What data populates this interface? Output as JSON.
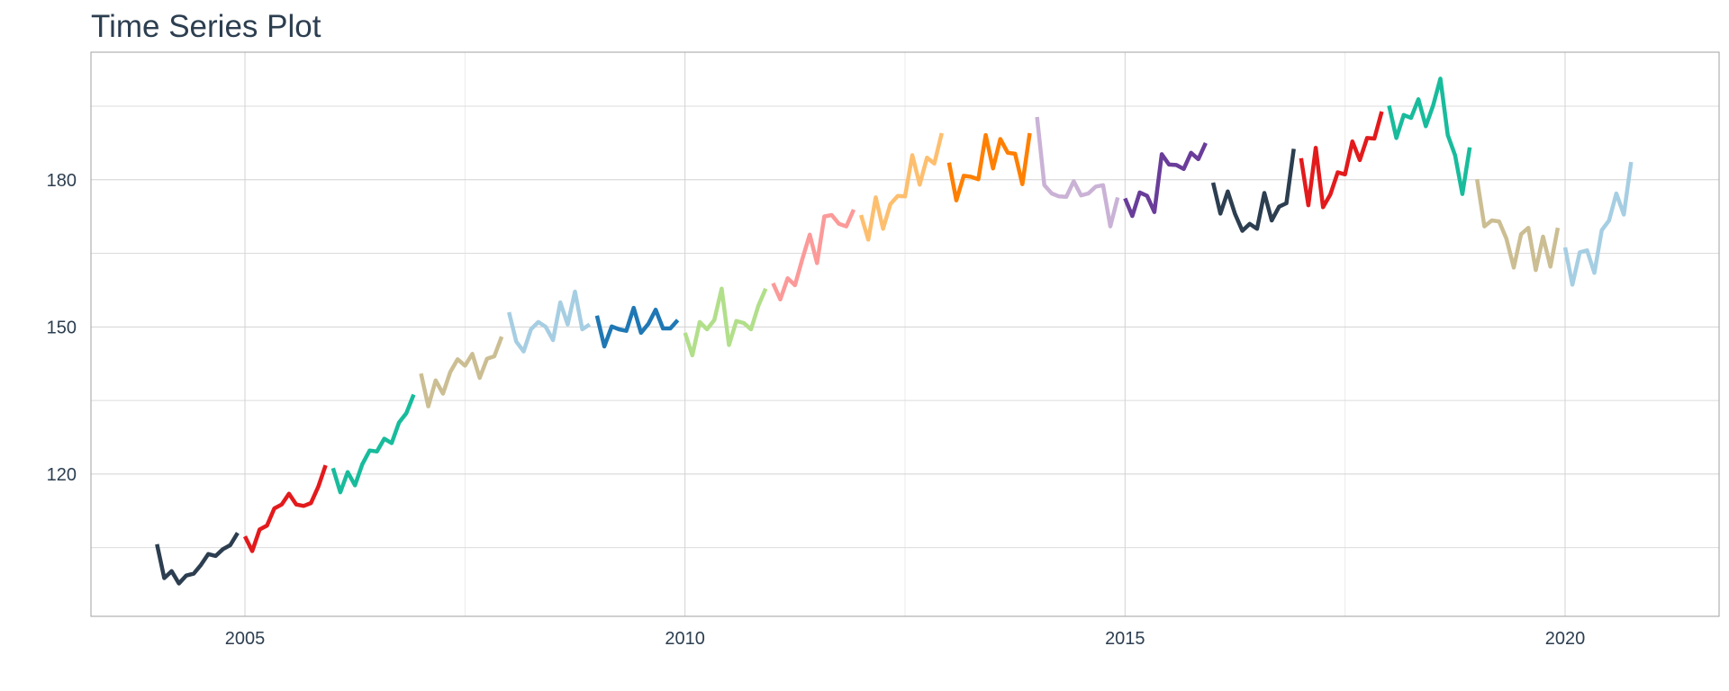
{
  "chart_data": {
    "type": "line",
    "title": "Time Series Plot",
    "xlabel": "",
    "ylabel": "",
    "xlim": [
      2003.25,
      2021.75
    ],
    "ylim": [
      91,
      206
    ],
    "x_major_ticks": [
      2005,
      2010,
      2015,
      2020
    ],
    "x_minor_ticks": [
      2007.5,
      2012.5,
      2017.5
    ],
    "y_major_ticks": [
      120,
      150,
      180
    ],
    "y_minor_ticks": [
      105,
      135,
      165,
      195
    ],
    "grid": true,
    "legend": "none",
    "series": [
      {
        "year": 2004,
        "color": "#2c3e50",
        "x": [
          2004.0,
          2004.083,
          2004.167,
          2004.25,
          2004.333,
          2004.417,
          2004.5,
          2004.583,
          2004.667,
          2004.75,
          2004.833,
          2004.917
        ],
        "values": [
          105.7,
          98.8,
          100.2,
          97.7,
          99.3,
          99.7,
          101.5,
          103.7,
          103.3,
          104.7,
          105.5,
          108.0
        ]
      },
      {
        "year": 2005,
        "color": "#e31a1c",
        "x": [
          2005.0,
          2005.083,
          2005.167,
          2005.25,
          2005.333,
          2005.417,
          2005.5,
          2005.583,
          2005.667,
          2005.75,
          2005.833,
          2005.917
        ],
        "values": [
          107.3,
          104.3,
          108.7,
          109.5,
          113.0,
          113.8,
          116.0,
          113.8,
          113.5,
          114.1,
          117.4,
          121.8
        ]
      },
      {
        "year": 2006,
        "color": "#18bc9c",
        "x": [
          2006.0,
          2006.083,
          2006.167,
          2006.25,
          2006.333,
          2006.417,
          2006.5,
          2006.583,
          2006.667,
          2006.75,
          2006.833,
          2006.917
        ],
        "values": [
          121.2,
          116.3,
          120.4,
          117.7,
          122.0,
          124.8,
          124.6,
          127.2,
          126.3,
          130.5,
          132.4,
          136.2
        ]
      },
      {
        "year": 2007,
        "color": "#ccbe93",
        "x": [
          2007.0,
          2007.083,
          2007.167,
          2007.25,
          2007.333,
          2007.417,
          2007.5,
          2007.583,
          2007.667,
          2007.75,
          2007.833,
          2007.917
        ],
        "values": [
          140.5,
          133.8,
          139.1,
          136.4,
          140.8,
          143.4,
          142.1,
          144.5,
          139.6,
          143.5,
          144.0,
          148.0
        ]
      },
      {
        "year": 2008,
        "color": "#a6cee3",
        "x": [
          2008.0,
          2008.083,
          2008.167,
          2008.25,
          2008.333,
          2008.417,
          2008.5,
          2008.583,
          2008.667,
          2008.75,
          2008.833,
          2008.917
        ],
        "values": [
          153.0,
          147.0,
          145.0,
          149.5,
          151.0,
          150.0,
          147.3,
          155.0,
          150.5,
          157.2,
          149.5,
          150.5
        ]
      },
      {
        "year": 2009,
        "color": "#1f78b4",
        "x": [
          2009.0,
          2009.083,
          2009.167,
          2009.25,
          2009.333,
          2009.417,
          2009.5,
          2009.583,
          2009.667,
          2009.75,
          2009.833,
          2009.917
        ],
        "values": [
          152.3,
          146.0,
          150.1,
          149.5,
          149.2,
          153.9,
          148.8,
          150.6,
          153.5,
          149.7,
          149.7,
          151.4
        ]
      },
      {
        "year": 2010,
        "color": "#b2df8a",
        "x": [
          2010.0,
          2010.083,
          2010.167,
          2010.25,
          2010.333,
          2010.417,
          2010.5,
          2010.583,
          2010.667,
          2010.75,
          2010.833,
          2010.917
        ],
        "values": [
          148.8,
          144.2,
          151.0,
          149.5,
          151.4,
          157.8,
          146.3,
          151.2,
          150.8,
          149.5,
          154.3,
          157.8
        ]
      },
      {
        "year": 2011,
        "color": "#fb9a99",
        "x": [
          2011.0,
          2011.083,
          2011.167,
          2011.25,
          2011.333,
          2011.417,
          2011.5,
          2011.583,
          2011.667,
          2011.75,
          2011.833,
          2011.917
        ],
        "values": [
          158.9,
          155.6,
          159.9,
          158.5,
          163.8,
          168.8,
          163.0,
          172.5,
          172.8,
          171.0,
          170.5,
          173.9
        ]
      },
      {
        "year": 2012,
        "color": "#fdbf6f",
        "x": [
          2012.0,
          2012.083,
          2012.167,
          2012.25,
          2012.333,
          2012.417,
          2012.5,
          2012.583,
          2012.667,
          2012.75,
          2012.833,
          2012.917
        ],
        "values": [
          172.8,
          167.8,
          176.4,
          170.0,
          175.0,
          176.7,
          176.6,
          185.0,
          179.0,
          184.5,
          183.3,
          189.5
        ]
      },
      {
        "year": 2013,
        "color": "#ff7f00",
        "x": [
          2013.0,
          2013.083,
          2013.167,
          2013.25,
          2013.333,
          2013.417,
          2013.5,
          2013.583,
          2013.667,
          2013.75,
          2013.833,
          2013.917
        ],
        "values": [
          183.5,
          175.8,
          180.8,
          180.6,
          180.1,
          189.1,
          182.3,
          188.3,
          185.5,
          185.3,
          179.1,
          189.5
        ]
      },
      {
        "year": 2014,
        "color": "#cab2d6",
        "x": [
          2014.0,
          2014.083,
          2014.167,
          2014.25,
          2014.333,
          2014.417,
          2014.5,
          2014.583,
          2014.667,
          2014.75,
          2014.833,
          2014.917
        ],
        "values": [
          192.8,
          178.9,
          177.2,
          176.6,
          176.5,
          179.7,
          176.8,
          177.2,
          178.6,
          178.9,
          170.5,
          176.4
        ]
      },
      {
        "year": 2015,
        "color": "#6a3d9a",
        "x": [
          2015.0,
          2015.083,
          2015.167,
          2015.25,
          2015.333,
          2015.417,
          2015.5,
          2015.583,
          2015.667,
          2015.75,
          2015.833,
          2015.917
        ],
        "values": [
          176.2,
          172.6,
          177.4,
          176.7,
          173.4,
          185.2,
          183.1,
          183.0,
          182.2,
          185.5,
          184.2,
          187.5
        ]
      },
      {
        "year": 2016,
        "color": "#2c3e50",
        "x": [
          2016.0,
          2016.083,
          2016.167,
          2016.25,
          2016.333,
          2016.417,
          2016.5,
          2016.583,
          2016.667,
          2016.75,
          2016.833,
          2016.917
        ],
        "values": [
          179.4,
          173.1,
          177.6,
          173.0,
          169.6,
          171.0,
          170.0,
          177.3,
          171.7,
          174.5,
          175.2,
          186.3
        ]
      },
      {
        "year": 2017,
        "color": "#e31a1c",
        "x": [
          2017.0,
          2017.083,
          2017.167,
          2017.25,
          2017.333,
          2017.417,
          2017.5,
          2017.583,
          2017.667,
          2017.75,
          2017.833,
          2017.917
        ],
        "values": [
          184.4,
          174.8,
          186.5,
          174.4,
          177.0,
          181.5,
          181.1,
          187.8,
          184.0,
          188.5,
          188.4,
          193.9
        ]
      },
      {
        "year": 2018,
        "color": "#18bc9c",
        "x": [
          2018.0,
          2018.083,
          2018.167,
          2018.25,
          2018.333,
          2018.417,
          2018.5,
          2018.583,
          2018.667,
          2018.75,
          2018.833,
          2018.917
        ],
        "values": [
          195.1,
          188.5,
          193.2,
          192.6,
          196.4,
          190.9,
          195.1,
          200.6,
          189.1,
          185.0,
          177.1,
          186.6
        ]
      },
      {
        "year": 2019,
        "color": "#ccbe93",
        "x": [
          2019.0,
          2019.083,
          2019.167,
          2019.25,
          2019.333,
          2019.417,
          2019.5,
          2019.583,
          2019.667,
          2019.75,
          2019.833,
          2019.917
        ],
        "values": [
          180.1,
          170.5,
          171.7,
          171.5,
          168.0,
          162.1,
          168.9,
          170.2,
          161.6,
          168.4,
          162.3,
          170.2
        ]
      },
      {
        "year": 2020,
        "color": "#a6cee3",
        "x": [
          2020.0,
          2020.083,
          2020.167,
          2020.25,
          2020.333,
          2020.417,
          2020.5,
          2020.583,
          2020.667,
          2020.75,
          2020.833
        ],
        "values": [
          166.2,
          158.6,
          165.2,
          165.6,
          161.0,
          169.7,
          171.7,
          177.2,
          172.9,
          183.6,
          null
        ]
      }
    ]
  }
}
